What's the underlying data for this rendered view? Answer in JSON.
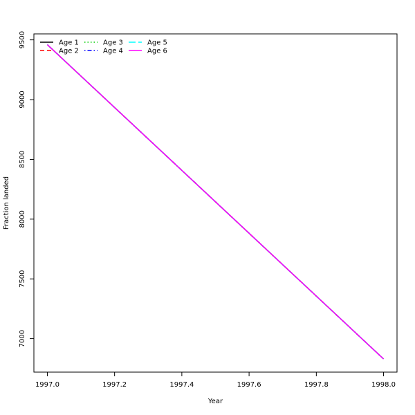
{
  "chart_data": {
    "type": "line",
    "title": "",
    "xlabel": "Year",
    "ylabel": "Fraction landed",
    "xlim": [
      1996.96,
      1998.04
    ],
    "ylim": [
      6720,
      9550
    ],
    "x_ticks": [
      1997.0,
      1997.2,
      1997.4,
      1997.6,
      1997.8,
      1998.0
    ],
    "x_tick_labels": [
      "1997.0",
      "1997.2",
      "1997.4",
      "1997.6",
      "1997.8",
      "1998.0"
    ],
    "y_ticks": [
      7000,
      7500,
      8000,
      8500,
      9000,
      9500
    ],
    "y_tick_labels": [
      "7000",
      "7500",
      "8000",
      "8500",
      "9000",
      "9500"
    ],
    "grid": false,
    "legend_position": "top-left",
    "legend_columns": 3,
    "series": [
      {
        "name": "Age 1",
        "color": "#000000",
        "dash": "solid",
        "x": [
          1997.0,
          1998.0
        ],
        "y": [
          9460,
          6830
        ]
      },
      {
        "name": "Age 2",
        "color": "#ff0000",
        "dash": "dashed",
        "x": [
          1997.0,
          1998.0
        ],
        "y": [
          9460,
          6830
        ]
      },
      {
        "name": "Age 3",
        "color": "#00cd00",
        "dash": "dotted",
        "x": [
          1997.0,
          1998.0
        ],
        "y": [
          9460,
          6830
        ]
      },
      {
        "name": "Age 4",
        "color": "#0000ff",
        "dash": "dotdash",
        "x": [
          1997.0,
          1998.0
        ],
        "y": [
          9460,
          6830
        ]
      },
      {
        "name": "Age 5",
        "color": "#00ffff",
        "dash": "longdash",
        "x": [
          1997.0,
          1998.0
        ],
        "y": [
          9460,
          6830
        ]
      },
      {
        "name": "Age 6",
        "color": "#ff00ff",
        "dash": "solid",
        "x": [
          1997.0,
          1998.0
        ],
        "y": [
          9460,
          6830
        ]
      }
    ]
  }
}
